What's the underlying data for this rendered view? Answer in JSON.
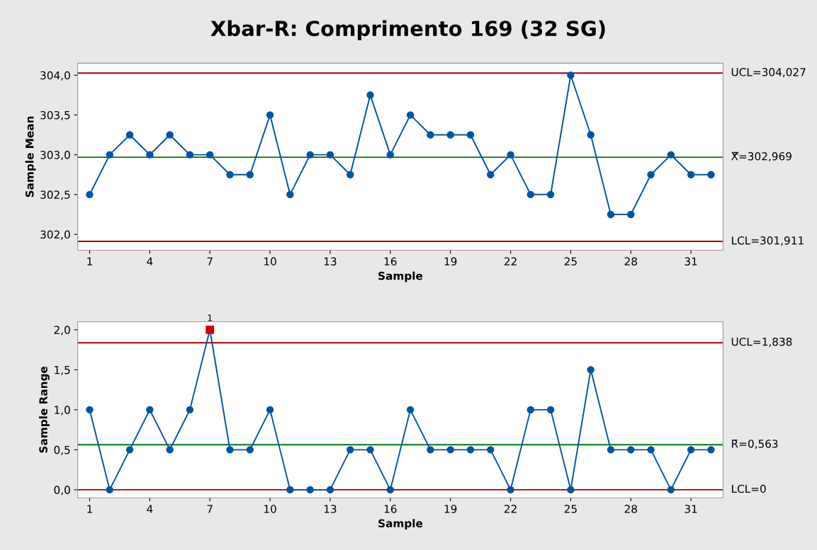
{
  "chart_data": [
    {
      "type": "line",
      "title": "Xbar-R: Comprimento 169 (32 SG)",
      "xlabel": "Sample",
      "ylabel": "Sample Mean",
      "x": [
        1,
        2,
        3,
        4,
        5,
        6,
        7,
        8,
        9,
        10,
        11,
        12,
        13,
        14,
        15,
        16,
        17,
        18,
        19,
        20,
        21,
        22,
        23,
        24,
        25,
        26,
        27,
        28,
        29,
        30,
        31,
        32
      ],
      "series": [
        {
          "color": "#0054a6",
          "values": [
            302.5,
            303.0,
            303.25,
            303.0,
            303.25,
            303.0,
            303.0,
            302.75,
            302.75,
            303.5,
            302.5,
            303.0,
            303.0,
            302.75,
            303.75,
            303.0,
            303.5,
            303.25,
            303.25,
            303.25,
            302.75,
            303.0,
            302.5,
            302.5,
            304.0,
            303.25,
            302.25,
            302.25,
            302.75,
            303.0,
            302.75,
            302.75
          ]
        }
      ],
      "marker": "circle",
      "grid": false,
      "xlim": [
        0.4,
        32.6
      ],
      "xticks": [
        1,
        4,
        7,
        10,
        13,
        16,
        19,
        22,
        25,
        28,
        31
      ],
      "ylim": [
        301.8,
        304.15
      ],
      "yticks": [
        {
          "value": 302.0,
          "label": "302,0"
        },
        {
          "value": 302.5,
          "label": "302,5"
        },
        {
          "value": 303.0,
          "label": "303,0"
        },
        {
          "value": 303.5,
          "label": "303,5"
        },
        {
          "value": 304.0,
          "label": "304,0"
        }
      ],
      "ref_lines": [
        {
          "axis": "y",
          "value": 304.027,
          "label": "UCL=304,027",
          "color": "#a50000"
        },
        {
          "axis": "y",
          "value": 302.969,
          "label": "X̿=302,969",
          "color": "#007a00"
        },
        {
          "axis": "y",
          "value": 301.911,
          "label": "LCL=301,911",
          "color": "#a50000"
        }
      ]
    },
    {
      "type": "line",
      "xlabel": "Sample",
      "ylabel": "Sample Range",
      "x": [
        1,
        2,
        3,
        4,
        5,
        6,
        7,
        8,
        9,
        10,
        11,
        12,
        13,
        14,
        15,
        16,
        17,
        18,
        19,
        20,
        21,
        22,
        23,
        24,
        25,
        26,
        27,
        28,
        29,
        30,
        31,
        32
      ],
      "series": [
        {
          "color": "#0054a6",
          "values": [
            1.0,
            0,
            0.5,
            1.0,
            0.5,
            1.0,
            2.0,
            0.5,
            0.5,
            1.0,
            0,
            0,
            0,
            0.5,
            0.5,
            0,
            1.0,
            0.5,
            0.5,
            0.5,
            0.5,
            0,
            1.0,
            1.0,
            0,
            1.5,
            0.5,
            0.5,
            0.5,
            0,
            0.5,
            0.5
          ]
        },
        {
          "type": "scatter",
          "marker": "square",
          "color": "#d00000",
          "x": [
            7
          ],
          "values": [
            2.0
          ]
        }
      ],
      "marker": "circle",
      "grid": false,
      "xlim": [
        0.4,
        32.6
      ],
      "xticks": [
        1,
        4,
        7,
        10,
        13,
        16,
        19,
        22,
        25,
        28,
        31
      ],
      "ylim": [
        -0.1,
        2.1
      ],
      "yticks": [
        {
          "value": 0.0,
          "label": "0,0"
        },
        {
          "value": 0.5,
          "label": "0,5"
        },
        {
          "value": 1.0,
          "label": "1,0"
        },
        {
          "value": 1.5,
          "label": "1,5"
        },
        {
          "value": 2.0,
          "label": "2,0"
        }
      ],
      "annotations": [
        {
          "text": "1",
          "x": 7,
          "y": 2.0
        }
      ],
      "ref_lines": [
        {
          "axis": "y",
          "value": 1.838,
          "label": "UCL=1,838",
          "color": "#a50000"
        },
        {
          "axis": "y",
          "value": 0.563,
          "label": "R̄=0,563",
          "color": "#007a00"
        },
        {
          "axis": "y",
          "value": 0,
          "label": "LCL=0",
          "color": "#a50000"
        }
      ]
    }
  ]
}
